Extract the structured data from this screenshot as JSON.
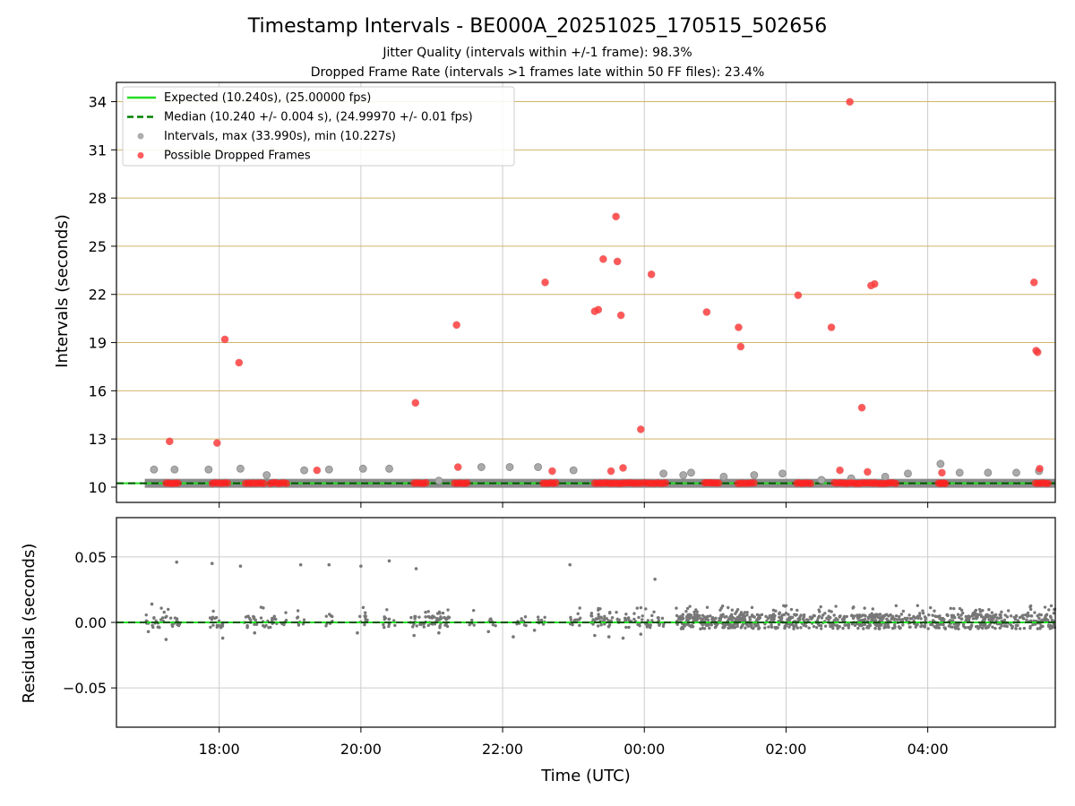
{
  "chart_data": {
    "type": "scatter",
    "title": "Timestamp Intervals - BE000A_20251025_170515_502656",
    "subtitle_lines": [
      "Jitter Quality (intervals within +/-1 frame): 98.3%",
      "Dropped Frame Rate (intervals >1 frames late within 50 FF files): 23.4%"
    ],
    "xlabel": "Time (UTC)",
    "x_unit": "hours since 17:00 UTC (values above 7 are next-day 00:00+)",
    "xlim": [
      -0.45,
      12.8
    ],
    "x_ticks": [
      {
        "value": 1,
        "label": "18:00"
      },
      {
        "value": 3,
        "label": "20:00"
      },
      {
        "value": 5,
        "label": "22:00"
      },
      {
        "value": 7,
        "label": "00:00"
      },
      {
        "value": 9,
        "label": "02:00"
      },
      {
        "value": 11,
        "label": "04:00"
      }
    ],
    "top_panel": {
      "ylabel": "Intervals (seconds)",
      "ylim": [
        9.05,
        35.2
      ],
      "y_ticks": [
        10,
        13,
        16,
        19,
        22,
        25,
        28,
        31,
        34
      ],
      "y_tick_labels": [
        "10",
        "13",
        "16",
        "19",
        "22",
        "25",
        "28",
        "31",
        "34"
      ],
      "expected_line": 10.24,
      "median_line": 10.24,
      "legend": {
        "position": "upper-left",
        "entries": [
          {
            "label": "Expected (10.240s), (25.00000 fps)",
            "style": "solid-line",
            "color": "#22dd22"
          },
          {
            "label": "Median (10.240 +/- 0.004 s), (24.99970 +/- 0.01 fps)",
            "style": "dashed-line",
            "color": "#008000"
          },
          {
            "label": "Intervals, max (33.990s), min (10.227s)",
            "style": "marker",
            "color": "#999999"
          },
          {
            "label": "Possible Dropped Frames",
            "style": "marker",
            "color": "#ff3333"
          }
        ]
      },
      "interval_points": [
        [
          0.08,
          11.1
        ],
        [
          0.37,
          11.1
        ],
        [
          0.85,
          11.1
        ],
        [
          1.3,
          11.15
        ],
        [
          1.67,
          10.75
        ],
        [
          2.2,
          11.05
        ],
        [
          2.55,
          11.1
        ],
        [
          3.03,
          11.15
        ],
        [
          3.4,
          11.15
        ],
        [
          4.1,
          10.4
        ],
        [
          4.7,
          11.25
        ],
        [
          5.1,
          11.25
        ],
        [
          5.5,
          11.25
        ],
        [
          6.0,
          11.05
        ],
        [
          7.27,
          10.85
        ],
        [
          7.55,
          10.75
        ],
        [
          7.66,
          10.9
        ],
        [
          8.12,
          10.65
        ],
        [
          8.55,
          10.75
        ],
        [
          8.95,
          10.85
        ],
        [
          9.5,
          10.45
        ],
        [
          9.92,
          10.55
        ],
        [
          10.4,
          10.65
        ],
        [
          10.72,
          10.85
        ],
        [
          11.18,
          11.45
        ],
        [
          11.45,
          10.9
        ],
        [
          11.85,
          10.9
        ],
        [
          12.25,
          10.9
        ],
        [
          12.57,
          11.0
        ]
      ],
      "interval_bands": [
        [
          0.0,
          12.8,
          10.24
        ]
      ],
      "dropped_points": [
        [
          0.3,
          12.85
        ],
        [
          1.08,
          19.2
        ],
        [
          1.28,
          17.75
        ],
        [
          0.97,
          12.75
        ],
        [
          2.38,
          11.05
        ],
        [
          3.77,
          15.25
        ],
        [
          4.35,
          20.1
        ],
        [
          4.37,
          11.25
        ],
        [
          5.6,
          22.75
        ],
        [
          5.7,
          11.0
        ],
        [
          6.3,
          20.95
        ],
        [
          6.35,
          21.05
        ],
        [
          6.42,
          24.2
        ],
        [
          6.53,
          11.0
        ],
        [
          6.6,
          26.85
        ],
        [
          6.62,
          24.05
        ],
        [
          6.67,
          20.7
        ],
        [
          6.7,
          11.2
        ],
        [
          6.95,
          13.6
        ],
        [
          7.1,
          23.25
        ],
        [
          7.88,
          20.9
        ],
        [
          8.33,
          19.95
        ],
        [
          8.36,
          18.75
        ],
        [
          9.17,
          21.95
        ],
        [
          9.64,
          19.95
        ],
        [
          9.76,
          11.05
        ],
        [
          9.9,
          33.99
        ],
        [
          10.07,
          14.95
        ],
        [
          10.15,
          10.95
        ],
        [
          10.2,
          22.55
        ],
        [
          10.25,
          22.65
        ],
        [
          11.2,
          10.9
        ],
        [
          12.5,
          22.75
        ],
        [
          12.53,
          18.5
        ],
        [
          12.55,
          18.4
        ],
        [
          12.58,
          11.15
        ]
      ],
      "dropped_clusters": [
        [
          0.25,
          0.42
        ],
        [
          0.9,
          1.12
        ],
        [
          1.37,
          1.63
        ],
        [
          1.72,
          1.95
        ],
        [
          3.75,
          3.92
        ],
        [
          4.32,
          4.5
        ],
        [
          5.57,
          5.75
        ],
        [
          6.3,
          6.95
        ],
        [
          7.0,
          7.3
        ],
        [
          7.85,
          8.05
        ],
        [
          8.32,
          8.55
        ],
        [
          9.15,
          9.35
        ],
        [
          9.68,
          10.22
        ],
        [
          10.25,
          10.55
        ],
        [
          11.15,
          11.25
        ],
        [
          12.52,
          12.7
        ]
      ]
    },
    "bottom_panel": {
      "ylabel": "Residuals (seconds)",
      "ylim": [
        -0.08,
        0.08
      ],
      "y_ticks": [
        -0.05,
        0.0,
        0.05
      ],
      "y_tick_labels": [
        "−0.05",
        "0.00",
        "0.05"
      ],
      "zero_line": 0.0,
      "outlier_points": [
        [
          0.4,
          0.046
        ],
        [
          0.9,
          0.045
        ],
        [
          1.3,
          0.043
        ],
        [
          2.15,
          0.044
        ],
        [
          2.55,
          0.044
        ],
        [
          3.0,
          0.043
        ],
        [
          3.4,
          0.047
        ],
        [
          3.78,
          0.041
        ],
        [
          5.95,
          0.044
        ],
        [
          7.15,
          0.033
        ],
        [
          0.05,
          0.014
        ],
        [
          0.25,
          -0.013
        ],
        [
          1.05,
          -0.012
        ],
        [
          0.0,
          -0.007
        ],
        [
          1.5,
          -0.008
        ],
        [
          2.95,
          -0.008
        ],
        [
          3.75,
          -0.01
        ],
        [
          4.1,
          -0.008
        ],
        [
          4.8,
          -0.007
        ],
        [
          5.15,
          -0.011
        ],
        [
          5.45,
          -0.006
        ],
        [
          6.3,
          -0.01
        ],
        [
          6.5,
          -0.011
        ],
        [
          6.7,
          -0.012
        ],
        [
          6.95,
          -0.009
        ]
      ]
    }
  }
}
